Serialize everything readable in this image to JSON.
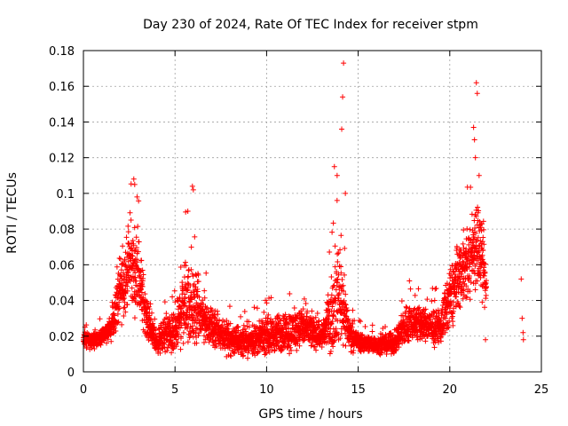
{
  "chart_data": {
    "type": "scatter",
    "title": "Day 230 of 2024, Rate Of TEC Index for receiver stpm",
    "xlabel": "GPS time / hours",
    "ylabel": "ROTI / TECUs",
    "xlim": [
      0,
      25
    ],
    "ylim": [
      0,
      0.18
    ],
    "x_ticks": [
      "0",
      "5",
      "10",
      "15",
      "20",
      "25"
    ],
    "y_ticks": [
      "0",
      "0.02",
      "0.04",
      "0.06",
      "0.08",
      "0.1",
      "0.12",
      "0.14",
      "0.16",
      "0.18"
    ],
    "grid": true,
    "legend": "none",
    "marker": "plus",
    "series_color": "#ff0000",
    "envelope": [
      {
        "x": 0.0,
        "mean": 0.018,
        "spread": 0.004
      },
      {
        "x": 0.5,
        "mean": 0.017,
        "spread": 0.005
      },
      {
        "x": 1.0,
        "mean": 0.02,
        "spread": 0.005
      },
      {
        "x": 1.5,
        "mean": 0.024,
        "spread": 0.007
      },
      {
        "x": 2.0,
        "mean": 0.045,
        "spread": 0.02
      },
      {
        "x": 2.5,
        "mean": 0.06,
        "spread": 0.022
      },
      {
        "x": 3.0,
        "mean": 0.055,
        "spread": 0.025
      },
      {
        "x": 3.5,
        "mean": 0.028,
        "spread": 0.01
      },
      {
        "x": 4.0,
        "mean": 0.016,
        "spread": 0.006
      },
      {
        "x": 4.5,
        "mean": 0.022,
        "spread": 0.012
      },
      {
        "x": 5.0,
        "mean": 0.02,
        "spread": 0.012
      },
      {
        "x": 5.5,
        "mean": 0.04,
        "spread": 0.025
      },
      {
        "x": 6.0,
        "mean": 0.035,
        "spread": 0.025
      },
      {
        "x": 6.5,
        "mean": 0.03,
        "spread": 0.015
      },
      {
        "x": 7.0,
        "mean": 0.025,
        "spread": 0.01
      },
      {
        "x": 7.5,
        "mean": 0.022,
        "spread": 0.01
      },
      {
        "x": 8.0,
        "mean": 0.018,
        "spread": 0.01
      },
      {
        "x": 9.0,
        "mean": 0.017,
        "spread": 0.008
      },
      {
        "x": 10.0,
        "mean": 0.02,
        "spread": 0.01
      },
      {
        "x": 11.0,
        "mean": 0.022,
        "spread": 0.012
      },
      {
        "x": 12.0,
        "mean": 0.025,
        "spread": 0.012
      },
      {
        "x": 13.0,
        "mean": 0.02,
        "spread": 0.008
      },
      {
        "x": 13.5,
        "mean": 0.03,
        "spread": 0.02
      },
      {
        "x": 14.0,
        "mean": 0.045,
        "spread": 0.03
      },
      {
        "x": 14.5,
        "mean": 0.022,
        "spread": 0.01
      },
      {
        "x": 15.0,
        "mean": 0.017,
        "spread": 0.006
      },
      {
        "x": 16.0,
        "mean": 0.015,
        "spread": 0.005
      },
      {
        "x": 17.0,
        "mean": 0.016,
        "spread": 0.006
      },
      {
        "x": 17.5,
        "mean": 0.025,
        "spread": 0.012
      },
      {
        "x": 18.0,
        "mean": 0.028,
        "spread": 0.012
      },
      {
        "x": 19.0,
        "mean": 0.025,
        "spread": 0.01
      },
      {
        "x": 19.5,
        "mean": 0.025,
        "spread": 0.01
      },
      {
        "x": 20.0,
        "mean": 0.04,
        "spread": 0.02
      },
      {
        "x": 20.5,
        "mean": 0.055,
        "spread": 0.02
      },
      {
        "x": 21.0,
        "mean": 0.06,
        "spread": 0.02
      },
      {
        "x": 21.5,
        "mean": 0.075,
        "spread": 0.03
      },
      {
        "x": 22.0,
        "mean": 0.045,
        "spread": 0.015
      }
    ],
    "highlights": [
      {
        "x": 2.75,
        "y": 0.108
      },
      {
        "x": 2.8,
        "y": 0.105
      },
      {
        "x": 2.6,
        "y": 0.085
      },
      {
        "x": 5.95,
        "y": 0.104
      },
      {
        "x": 6.0,
        "y": 0.102
      },
      {
        "x": 5.7,
        "y": 0.09
      },
      {
        "x": 13.7,
        "y": 0.115
      },
      {
        "x": 13.85,
        "y": 0.11
      },
      {
        "x": 14.1,
        "y": 0.136
      },
      {
        "x": 14.15,
        "y": 0.154
      },
      {
        "x": 14.2,
        "y": 0.173
      },
      {
        "x": 14.3,
        "y": 0.1
      },
      {
        "x": 21.3,
        "y": 0.137
      },
      {
        "x": 21.35,
        "y": 0.13
      },
      {
        "x": 21.45,
        "y": 0.162
      },
      {
        "x": 21.5,
        "y": 0.156
      },
      {
        "x": 21.4,
        "y": 0.12
      },
      {
        "x": 21.6,
        "y": 0.11
      },
      {
        "x": 21.95,
        "y": 0.018
      },
      {
        "x": 23.9,
        "y": 0.052
      },
      {
        "x": 23.95,
        "y": 0.03
      },
      {
        "x": 24.0,
        "y": 0.022
      },
      {
        "x": 24.02,
        "y": 0.018
      }
    ]
  }
}
